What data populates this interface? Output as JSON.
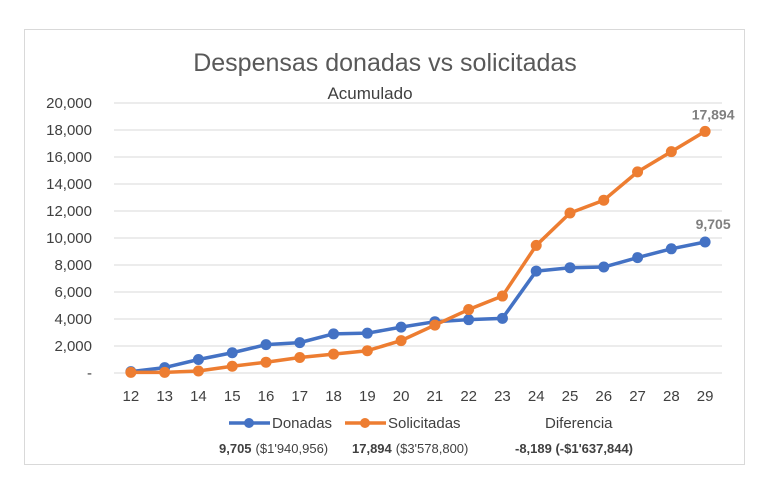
{
  "chart_data": {
    "type": "line",
    "title": "Despensas donadas vs solicitadas",
    "subtitle": "Acumulado",
    "x": [
      "12",
      "13",
      "14",
      "15",
      "16",
      "17",
      "18",
      "19",
      "20",
      "21",
      "22",
      "23",
      "24",
      "25",
      "26",
      "27",
      "28",
      "29"
    ],
    "ylim": [
      0,
      20000
    ],
    "yticks": [
      "-",
      "2,000",
      "4,000",
      "6,000",
      "8,000",
      "10,000",
      "12,000",
      "14,000",
      "16,000",
      "18,000",
      "20,000"
    ],
    "ytick_values": [
      0,
      2000,
      4000,
      6000,
      8000,
      10000,
      12000,
      14000,
      16000,
      18000,
      20000
    ],
    "grid": true,
    "legend_position": "bottom",
    "series": [
      {
        "name": "Donadas",
        "color": "#4472c4",
        "values": [
          100,
          400,
          1000,
          1500,
          2100,
          2250,
          2900,
          2950,
          3400,
          3800,
          3950,
          4050,
          7550,
          7800,
          7850,
          8550,
          9200,
          9705
        ],
        "end_label": "9,705"
      },
      {
        "name": "Solicitadas",
        "color": "#ed7d31",
        "values": [
          50,
          50,
          150,
          500,
          800,
          1150,
          1400,
          1650,
          2400,
          3550,
          4700,
          5700,
          9450,
          11850,
          12800,
          14900,
          16400,
          17894
        ],
        "end_label": "17,894"
      }
    ],
    "legend_extra": "Diferencia",
    "summary": {
      "donadas_count": "9,705",
      "donadas_amount": "($1'940,956)",
      "solicitadas_count": "17,894",
      "solicitadas_amount": "($3'578,800)",
      "diferencia_text": "-8,189 (-$1'637,844)",
      "diferencia_color": "#ff0000"
    }
  }
}
